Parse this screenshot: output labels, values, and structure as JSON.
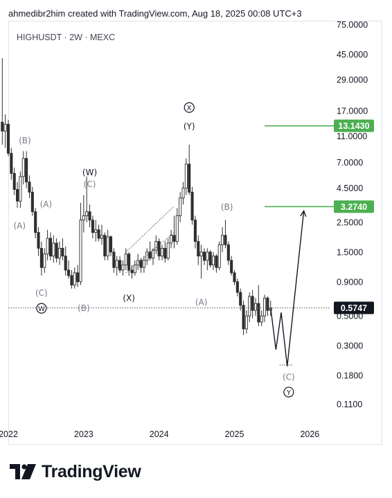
{
  "header": {
    "credit": "ahmedibr2him created with TradingView.com, Aug 18, 2025 00:08 UTC+3"
  },
  "symbol_line": "HIGHUSDT · 2W · MEXC",
  "brand": {
    "name": "TradingView",
    "logo": "tradingview-logo"
  },
  "chart_data": {
    "type": "candlestick",
    "y_scale": "log",
    "ylim": [
      0.08,
      80
    ],
    "xlim": [
      2022.0,
      2026.3
    ],
    "x_ticks": [
      {
        "label": "2022",
        "value": 2022
      },
      {
        "label": "2023",
        "value": 2023
      },
      {
        "label": "2024",
        "value": 2024
      },
      {
        "label": "2025",
        "value": 2025
      },
      {
        "label": "2026",
        "value": 2026
      }
    ],
    "y_ticks": [
      {
        "label": "75.0000",
        "value": 75
      },
      {
        "label": "45.0000",
        "value": 45
      },
      {
        "label": "29.0000",
        "value": 29
      },
      {
        "label": "17.0000",
        "value": 17
      },
      {
        "label": "11.0000",
        "value": 11
      },
      {
        "label": "7.0000",
        "value": 7
      },
      {
        "label": "4.5000",
        "value": 4.5
      },
      {
        "label": "2.5000",
        "value": 2.5
      },
      {
        "label": "1.5000",
        "value": 1.5
      },
      {
        "label": "0.9000",
        "value": 0.9
      },
      {
        "label": "0.5000",
        "value": 0.5
      },
      {
        "label": "0.3000",
        "value": 0.3
      },
      {
        "label": "0.1800",
        "value": 0.18
      },
      {
        "label": "0.1100",
        "value": 0.11
      }
    ],
    "colors": {
      "up": "#2e2e2e",
      "down": "#2e2e2e",
      "target": "#4caf50",
      "current_bg": "#131722"
    },
    "current_price": {
      "label": "0.5747",
      "value": 0.5747
    },
    "targets": [
      {
        "label": "13.1430",
        "value": 13.143,
        "x_from": 2025.4
      },
      {
        "label": "3.2740",
        "value": 3.274,
        "x_from": 2025.4
      }
    ],
    "candles": [
      {
        "t": 2021.92,
        "o": 14.0,
        "h": 42.0,
        "l": 9.5,
        "c": 12.0
      },
      {
        "t": 2021.96,
        "o": 12.0,
        "h": 16.0,
        "l": 9.0,
        "c": 13.5
      },
      {
        "t": 2022.0,
        "o": 13.5,
        "h": 14.5,
        "l": 7.8,
        "c": 8.2
      },
      {
        "t": 2022.04,
        "o": 8.2,
        "h": 9.0,
        "l": 5.2,
        "c": 5.8
      },
      {
        "t": 2022.08,
        "o": 5.8,
        "h": 6.4,
        "l": 4.0,
        "c": 4.4
      },
      {
        "t": 2022.12,
        "o": 4.4,
        "h": 5.0,
        "l": 3.2,
        "c": 3.6
      },
      {
        "t": 2022.16,
        "o": 3.6,
        "h": 6.0,
        "l": 3.2,
        "c": 5.5
      },
      {
        "t": 2022.2,
        "o": 5.5,
        "h": 8.5,
        "l": 4.8,
        "c": 7.5
      },
      {
        "t": 2022.24,
        "o": 7.5,
        "h": 8.5,
        "l": 4.5,
        "c": 5.0
      },
      {
        "t": 2022.28,
        "o": 5.0,
        "h": 5.6,
        "l": 3.8,
        "c": 4.2
      },
      {
        "t": 2022.32,
        "o": 4.2,
        "h": 4.6,
        "l": 2.8,
        "c": 3.0
      },
      {
        "t": 2022.36,
        "o": 3.0,
        "h": 3.2,
        "l": 1.9,
        "c": 2.1
      },
      {
        "t": 2022.4,
        "o": 2.1,
        "h": 2.3,
        "l": 1.4,
        "c": 1.6
      },
      {
        "t": 2022.44,
        "o": 1.6,
        "h": 1.8,
        "l": 1.0,
        "c": 1.15
      },
      {
        "t": 2022.48,
        "o": 1.15,
        "h": 1.6,
        "l": 1.05,
        "c": 1.45
      },
      {
        "t": 2022.52,
        "o": 1.45,
        "h": 2.2,
        "l": 1.3,
        "c": 1.9
      },
      {
        "t": 2022.56,
        "o": 1.9,
        "h": 2.1,
        "l": 1.3,
        "c": 1.4
      },
      {
        "t": 2022.6,
        "o": 1.4,
        "h": 2.0,
        "l": 1.25,
        "c": 1.75
      },
      {
        "t": 2022.64,
        "o": 1.75,
        "h": 1.9,
        "l": 1.25,
        "c": 1.35
      },
      {
        "t": 2022.68,
        "o": 1.35,
        "h": 1.8,
        "l": 1.2,
        "c": 1.6
      },
      {
        "t": 2022.72,
        "o": 1.6,
        "h": 1.9,
        "l": 1.3,
        "c": 1.4
      },
      {
        "t": 2022.76,
        "o": 1.4,
        "h": 1.65,
        "l": 1.0,
        "c": 1.1
      },
      {
        "t": 2022.8,
        "o": 1.1,
        "h": 1.3,
        "l": 0.95,
        "c": 1.0
      },
      {
        "t": 2022.84,
        "o": 1.0,
        "h": 1.1,
        "l": 0.8,
        "c": 0.85
      },
      {
        "t": 2022.88,
        "o": 0.85,
        "h": 1.15,
        "l": 0.8,
        "c": 1.05
      },
      {
        "t": 2022.92,
        "o": 1.05,
        "h": 1.2,
        "l": 0.82,
        "c": 0.9
      },
      {
        "t": 2022.96,
        "o": 0.9,
        "h": 3.5,
        "l": 0.85,
        "c": 2.6
      },
      {
        "t": 2023.0,
        "o": 2.6,
        "h": 4.0,
        "l": 2.1,
        "c": 2.8
      },
      {
        "t": 2023.04,
        "o": 2.8,
        "h": 5.5,
        "l": 2.5,
        "c": 3.0
      },
      {
        "t": 2023.08,
        "o": 3.0,
        "h": 3.4,
        "l": 2.3,
        "c": 2.6
      },
      {
        "t": 2023.12,
        "o": 2.6,
        "h": 2.8,
        "l": 1.9,
        "c": 2.1
      },
      {
        "t": 2023.16,
        "o": 2.1,
        "h": 2.6,
        "l": 1.8,
        "c": 2.2
      },
      {
        "t": 2023.2,
        "o": 2.2,
        "h": 2.4,
        "l": 1.8,
        "c": 1.9
      },
      {
        "t": 2023.24,
        "o": 1.9,
        "h": 2.4,
        "l": 1.7,
        "c": 2.0
      },
      {
        "t": 2023.28,
        "o": 2.0,
        "h": 2.1,
        "l": 1.3,
        "c": 1.4
      },
      {
        "t": 2023.32,
        "o": 1.4,
        "h": 2.2,
        "l": 1.3,
        "c": 1.95
      },
      {
        "t": 2023.36,
        "o": 1.95,
        "h": 2.0,
        "l": 1.4,
        "c": 1.5
      },
      {
        "t": 2023.4,
        "o": 1.5,
        "h": 1.6,
        "l": 1.05,
        "c": 1.15
      },
      {
        "t": 2023.44,
        "o": 1.15,
        "h": 1.4,
        "l": 1.0,
        "c": 1.3
      },
      {
        "t": 2023.48,
        "o": 1.3,
        "h": 1.4,
        "l": 1.05,
        "c": 1.1
      },
      {
        "t": 2023.52,
        "o": 1.1,
        "h": 1.3,
        "l": 1.0,
        "c": 1.2
      },
      {
        "t": 2023.56,
        "o": 1.2,
        "h": 1.6,
        "l": 1.1,
        "c": 1.45
      },
      {
        "t": 2023.6,
        "o": 1.45,
        "h": 1.5,
        "l": 1.0,
        "c": 1.1
      },
      {
        "t": 2023.64,
        "o": 1.1,
        "h": 1.2,
        "l": 0.95,
        "c": 1.05
      },
      {
        "t": 2023.68,
        "o": 1.05,
        "h": 1.3,
        "l": 1.0,
        "c": 1.2
      },
      {
        "t": 2023.72,
        "o": 1.2,
        "h": 1.45,
        "l": 1.1,
        "c": 1.3
      },
      {
        "t": 2023.76,
        "o": 1.3,
        "h": 1.35,
        "l": 1.05,
        "c": 1.15
      },
      {
        "t": 2023.8,
        "o": 1.15,
        "h": 1.4,
        "l": 1.05,
        "c": 1.3
      },
      {
        "t": 2023.84,
        "o": 1.3,
        "h": 1.6,
        "l": 1.2,
        "c": 1.5
      },
      {
        "t": 2023.88,
        "o": 1.5,
        "h": 1.8,
        "l": 1.3,
        "c": 1.35
      },
      {
        "t": 2023.92,
        "o": 1.35,
        "h": 1.6,
        "l": 1.2,
        "c": 1.55
      },
      {
        "t": 2023.96,
        "o": 1.55,
        "h": 2.0,
        "l": 1.45,
        "c": 1.8
      },
      {
        "t": 2024.0,
        "o": 1.8,
        "h": 1.9,
        "l": 1.3,
        "c": 1.4
      },
      {
        "t": 2024.04,
        "o": 1.4,
        "h": 1.7,
        "l": 1.3,
        "c": 1.6
      },
      {
        "t": 2024.08,
        "o": 1.6,
        "h": 1.8,
        "l": 1.25,
        "c": 1.35
      },
      {
        "t": 2024.12,
        "o": 1.35,
        "h": 1.9,
        "l": 1.3,
        "c": 1.75
      },
      {
        "t": 2024.16,
        "o": 1.75,
        "h": 2.2,
        "l": 1.6,
        "c": 2.0
      },
      {
        "t": 2024.2,
        "o": 2.0,
        "h": 2.8,
        "l": 1.6,
        "c": 1.8
      },
      {
        "t": 2024.24,
        "o": 1.8,
        "h": 3.2,
        "l": 1.7,
        "c": 2.8
      },
      {
        "t": 2024.28,
        "o": 2.8,
        "h": 4.2,
        "l": 2.5,
        "c": 3.8
      },
      {
        "t": 2024.32,
        "o": 3.8,
        "h": 5.0,
        "l": 3.4,
        "c": 4.5
      },
      {
        "t": 2024.36,
        "o": 4.5,
        "h": 7.5,
        "l": 4.0,
        "c": 6.8
      },
      {
        "t": 2024.4,
        "o": 6.8,
        "h": 9.5,
        "l": 4.0,
        "c": 4.2
      },
      {
        "t": 2024.44,
        "o": 4.2,
        "h": 4.6,
        "l": 2.4,
        "c": 2.6
      },
      {
        "t": 2024.48,
        "o": 2.6,
        "h": 2.8,
        "l": 1.6,
        "c": 1.8
      },
      {
        "t": 2024.52,
        "o": 1.8,
        "h": 2.0,
        "l": 1.2,
        "c": 1.4
      },
      {
        "t": 2024.56,
        "o": 1.4,
        "h": 1.7,
        "l": 0.95,
        "c": 1.5
      },
      {
        "t": 2024.6,
        "o": 1.5,
        "h": 1.6,
        "l": 1.2,
        "c": 1.3
      },
      {
        "t": 2024.64,
        "o": 1.3,
        "h": 1.6,
        "l": 1.1,
        "c": 1.5
      },
      {
        "t": 2024.68,
        "o": 1.5,
        "h": 1.55,
        "l": 1.15,
        "c": 1.2
      },
      {
        "t": 2024.72,
        "o": 1.2,
        "h": 1.5,
        "l": 1.1,
        "c": 1.4
      },
      {
        "t": 2024.76,
        "o": 1.4,
        "h": 1.45,
        "l": 1.05,
        "c": 1.15
      },
      {
        "t": 2024.8,
        "o": 1.15,
        "h": 1.8,
        "l": 1.1,
        "c": 1.7
      },
      {
        "t": 2024.84,
        "o": 1.7,
        "h": 2.3,
        "l": 1.5,
        "c": 2.0
      },
      {
        "t": 2024.88,
        "o": 2.0,
        "h": 2.6,
        "l": 1.6,
        "c": 1.7
      },
      {
        "t": 2024.92,
        "o": 1.7,
        "h": 1.8,
        "l": 1.2,
        "c": 1.3
      },
      {
        "t": 2024.96,
        "o": 1.3,
        "h": 1.4,
        "l": 1.0,
        "c": 1.05
      },
      {
        "t": 2025.0,
        "o": 1.05,
        "h": 1.1,
        "l": 0.85,
        "c": 0.9
      },
      {
        "t": 2025.04,
        "o": 0.9,
        "h": 0.95,
        "l": 0.7,
        "c": 0.75
      },
      {
        "t": 2025.08,
        "o": 0.75,
        "h": 0.8,
        "l": 0.55,
        "c": 0.6
      },
      {
        "t": 2025.12,
        "o": 0.6,
        "h": 0.65,
        "l": 0.36,
        "c": 0.4
      },
      {
        "t": 2025.16,
        "o": 0.4,
        "h": 0.55,
        "l": 0.37,
        "c": 0.5
      },
      {
        "t": 2025.2,
        "o": 0.5,
        "h": 0.75,
        "l": 0.45,
        "c": 0.7
      },
      {
        "t": 2025.24,
        "o": 0.7,
        "h": 0.78,
        "l": 0.48,
        "c": 0.55
      },
      {
        "t": 2025.28,
        "o": 0.55,
        "h": 0.68,
        "l": 0.5,
        "c": 0.62
      },
      {
        "t": 2025.32,
        "o": 0.62,
        "h": 0.85,
        "l": 0.42,
        "c": 0.45
      },
      {
        "t": 2025.36,
        "o": 0.45,
        "h": 0.55,
        "l": 0.42,
        "c": 0.5
      },
      {
        "t": 2025.4,
        "o": 0.5,
        "h": 0.72,
        "l": 0.45,
        "c": 0.68
      },
      {
        "t": 2025.44,
        "o": 0.68,
        "h": 0.7,
        "l": 0.5,
        "c": 0.55
      },
      {
        "t": 2025.48,
        "o": 0.55,
        "h": 0.65,
        "l": 0.5,
        "c": 0.5747
      }
    ],
    "projection_path": [
      {
        "x": 2025.48,
        "y": 0.5747
      },
      {
        "x": 2025.55,
        "y": 0.28
      },
      {
        "x": 2025.62,
        "y": 0.53
      },
      {
        "x": 2025.7,
        "y": 0.21
      },
      {
        "x": 2025.92,
        "y": 3.05
      }
    ],
    "trendlines": [
      {
        "from": {
          "x": 2023.56,
          "y": 1.5
        },
        "to": {
          "x": 2024.2,
          "y": 3.3
        },
        "style": "dotted"
      },
      {
        "from": {
          "x": 2023.56,
          "y": 1.05
        },
        "to": {
          "x": 2024.2,
          "y": 2.1
        },
        "style": "dotted"
      },
      {
        "from": {
          "x": 2025.6,
          "y": 0.215
        },
        "to": {
          "x": 2025.78,
          "y": 0.215
        },
        "style": "dotted"
      }
    ],
    "annotations": [
      {
        "text": "(B)",
        "x": 2022.22,
        "y": 10.2,
        "style": "gray"
      },
      {
        "text": "(A)",
        "x": 2022.5,
        "y": 3.4,
        "style": "gray"
      },
      {
        "text": "(A)",
        "x": 2022.15,
        "y": 2.35,
        "style": "gray"
      },
      {
        "text": "(C)",
        "x": 2022.44,
        "y": 0.74,
        "style": "gray"
      },
      {
        "text": "W",
        "x": 2022.44,
        "y": 0.57,
        "style": "circle"
      },
      {
        "text": "(W)",
        "x": 2023.08,
        "y": 5.9,
        "style": "dark"
      },
      {
        "text": "(C)",
        "x": 2023.08,
        "y": 4.8,
        "style": "gray"
      },
      {
        "text": "(B)",
        "x": 2023.0,
        "y": 0.57,
        "style": "gray"
      },
      {
        "text": "(X)",
        "x": 2023.6,
        "y": 0.68,
        "style": "dark"
      },
      {
        "text": "X",
        "x": 2024.4,
        "y": 18.0,
        "style": "circle"
      },
      {
        "text": "(Y)",
        "x": 2024.4,
        "y": 13.0,
        "style": "dark"
      },
      {
        "text": "(B)",
        "x": 2024.9,
        "y": 3.25,
        "style": "gray"
      },
      {
        "text": "(A)",
        "x": 2024.56,
        "y": 0.63,
        "style": "gray"
      },
      {
        "text": "(C)",
        "x": 2025.72,
        "y": 0.175,
        "style": "gray"
      },
      {
        "text": "Y",
        "x": 2025.72,
        "y": 0.135,
        "style": "circle"
      }
    ]
  }
}
